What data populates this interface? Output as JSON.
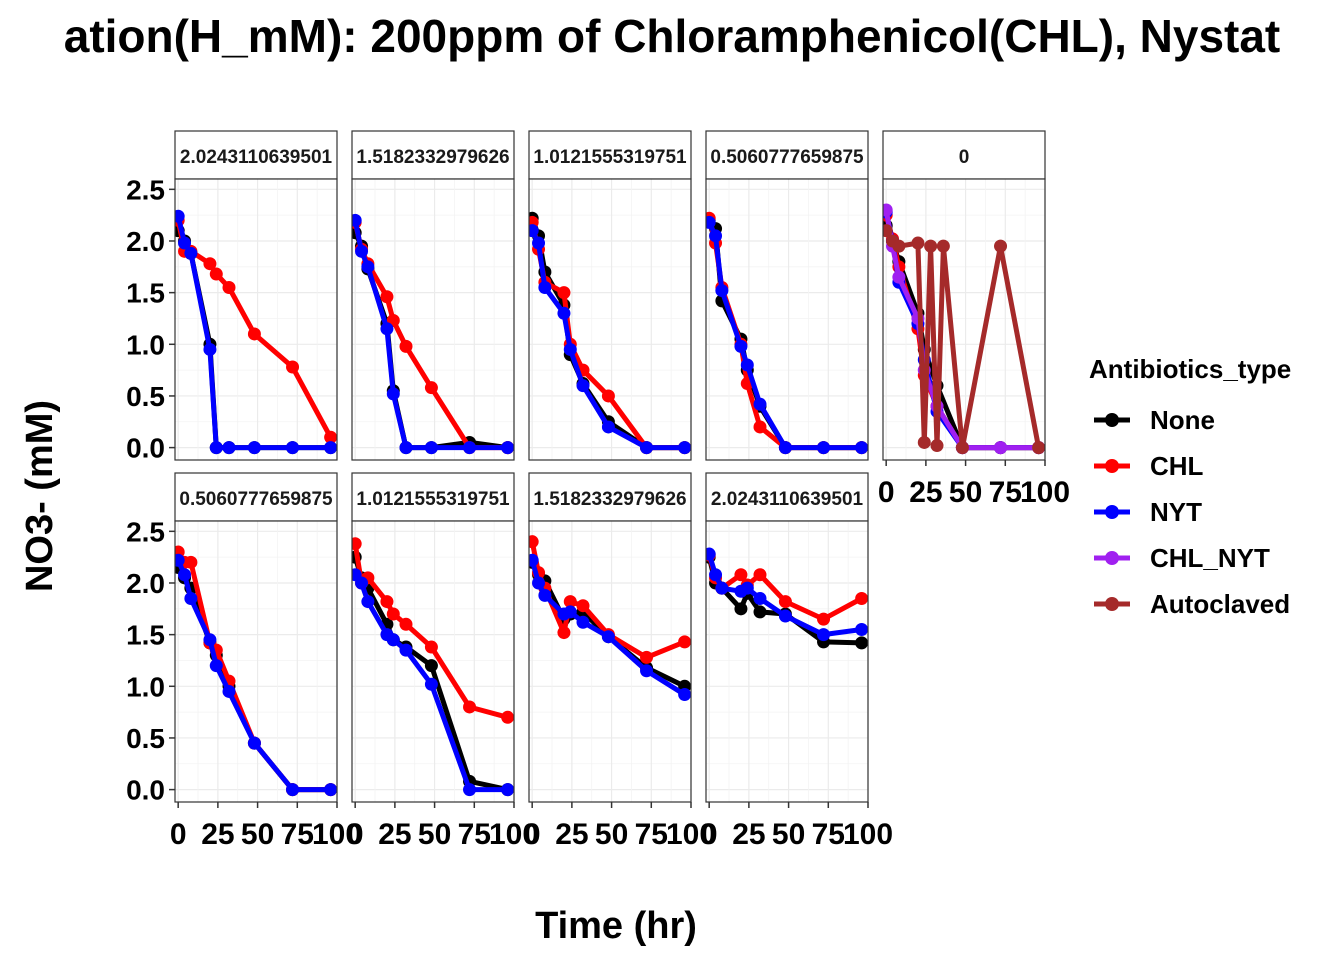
{
  "chart_data": {
    "type": "line",
    "title": "ation(H_mM): 200ppm of Chloramphenicol(CHL), Nystat",
    "xlabel": "Time (hr)",
    "ylabel": "NO3- (mM)",
    "xlim": [
      -2,
      100
    ],
    "ylim": [
      -0.12,
      2.6
    ],
    "x_ticks": [
      0,
      25,
      50,
      75,
      100
    ],
    "x_tick_labels": [
      "0",
      "25",
      "50",
      "75",
      "100"
    ],
    "y_ticks": [
      0,
      0.5,
      1,
      1.5,
      2,
      2.5
    ],
    "y_tick_labels": [
      "0.0",
      "0.5",
      "1.0",
      "1.5",
      "2.0",
      "2.5"
    ],
    "grid": true,
    "legend": {
      "title": "Antibiotics_type",
      "placement": "right",
      "entries": [
        "None",
        "CHL",
        "NYT",
        "CHL_NYT",
        "Autoclaved"
      ]
    },
    "colors": {
      "None": "#000000",
      "CHL": "#ff0000",
      "NYT": "#0000ff",
      "CHL_NYT": "#a020f0",
      "Autoclaved": "#a52a2a"
    },
    "panels": [
      {
        "label": "2.0243110639501",
        "series": [
          {
            "name": "None",
            "x": [
              0,
              4,
              8,
              20,
              24,
              32,
              48,
              72,
              96
            ],
            "y": [
              2.1,
              2.0,
              1.88,
              1.0,
              0.0,
              0.0,
              0.0,
              0.0,
              0.0
            ]
          },
          {
            "name": "CHL",
            "x": [
              0,
              4,
              8,
              20,
              24,
              32,
              48,
              72,
              96
            ],
            "y": [
              2.2,
              1.9,
              1.9,
              1.78,
              1.68,
              1.55,
              1.1,
              0.78,
              0.1
            ]
          },
          {
            "name": "NYT",
            "x": [
              0,
              4,
              8,
              20,
              24,
              32,
              48,
              72,
              96
            ],
            "y": [
              2.24,
              1.98,
              1.88,
              0.95,
              0.0,
              0.0,
              0.0,
              0.0,
              0.0
            ]
          }
        ]
      },
      {
        "label": "1.5182332979626",
        "series": [
          {
            "name": "None",
            "x": [
              0,
              4,
              8,
              20,
              24,
              32,
              48,
              72,
              96
            ],
            "y": [
              2.08,
              1.95,
              1.73,
              1.2,
              0.55,
              0.0,
              0.0,
              0.05,
              0.0
            ]
          },
          {
            "name": "CHL",
            "x": [
              0,
              4,
              8,
              20,
              24,
              32,
              48,
              72,
              96
            ],
            "y": [
              2.18,
              1.92,
              1.78,
              1.46,
              1.23,
              0.98,
              0.58,
              0.0,
              0.0
            ]
          },
          {
            "name": "NYT",
            "x": [
              0,
              4,
              8,
              20,
              24,
              32,
              48,
              72,
              96
            ],
            "y": [
              2.2,
              1.9,
              1.75,
              1.15,
              0.52,
              0.0,
              0.0,
              0.0,
              0.0
            ]
          }
        ]
      },
      {
        "label": "1.0121555319751",
        "series": [
          {
            "name": "None",
            "x": [
              0,
              4,
              8,
              20,
              24,
              32,
              48,
              72,
              96
            ],
            "y": [
              2.22,
              2.05,
              1.7,
              1.38,
              0.9,
              0.62,
              0.25,
              0.0,
              0.0
            ]
          },
          {
            "name": "CHL",
            "x": [
              0,
              4,
              8,
              20,
              24,
              32,
              48,
              72,
              96
            ],
            "y": [
              2.18,
              1.92,
              1.6,
              1.5,
              1.0,
              0.75,
              0.5,
              0.0,
              0.0
            ]
          },
          {
            "name": "NYT",
            "x": [
              0,
              4,
              8,
              20,
              24,
              32,
              48,
              72,
              96
            ],
            "y": [
              2.1,
              1.98,
              1.55,
              1.3,
              0.95,
              0.6,
              0.2,
              0.0,
              0.0
            ]
          }
        ]
      },
      {
        "label": "0.5060777659875",
        "series": [
          {
            "name": "None",
            "x": [
              0,
              4,
              8,
              20,
              24,
              32,
              48,
              72,
              96
            ],
            "y": [
              2.2,
              2.12,
              1.42,
              1.05,
              0.75,
              0.4,
              0.0,
              0.0,
              0.0
            ]
          },
          {
            "name": "CHL",
            "x": [
              0,
              4,
              8,
              20,
              24,
              32,
              48,
              72,
              96
            ],
            "y": [
              2.22,
              1.98,
              1.55,
              1.0,
              0.62,
              0.2,
              0.0,
              0.0,
              0.0
            ]
          },
          {
            "name": "NYT",
            "x": [
              0,
              4,
              8,
              20,
              24,
              32,
              48,
              72,
              96
            ],
            "y": [
              2.18,
              2.05,
              1.52,
              0.98,
              0.8,
              0.42,
              0.0,
              0.0,
              0.0
            ]
          }
        ]
      },
      {
        "label": "0",
        "series": [
          {
            "name": "None",
            "x": [
              0,
              4,
              8,
              20,
              24,
              32,
              48,
              72,
              96
            ],
            "y": [
              2.15,
              2.0,
              1.8,
              1.3,
              0.95,
              0.6,
              0.0,
              0.0,
              0.0
            ]
          },
          {
            "name": "CHL",
            "x": [
              0,
              4,
              8,
              20,
              24,
              32,
              48,
              72,
              96
            ],
            "y": [
              2.25,
              2.02,
              1.75,
              1.15,
              0.7,
              0.4,
              0.0,
              0.0,
              0.0
            ]
          },
          {
            "name": "NYT",
            "x": [
              0,
              4,
              8,
              20,
              24,
              32,
              48,
              72,
              96
            ],
            "y": [
              2.28,
              2.0,
              1.6,
              1.2,
              0.85,
              0.35,
              0.0,
              0.0,
              0.0
            ]
          },
          {
            "name": "CHL_NYT",
            "x": [
              0,
              4,
              8,
              20,
              24,
              32,
              48,
              72,
              96
            ],
            "y": [
              2.3,
              1.95,
              1.65,
              1.25,
              0.75,
              0.4,
              0.0,
              0.0,
              0.0
            ]
          },
          {
            "name": "Autoclaved",
            "x": [
              0,
              4,
              8,
              20,
              24,
              28,
              32,
              36,
              48,
              72,
              96
            ],
            "y": [
              2.1,
              2.0,
              1.95,
              1.98,
              0.05,
              1.95,
              0.02,
              1.95,
              0.0,
              1.95,
              0.0
            ]
          }
        ]
      },
      {
        "label": "0.5060777659875",
        "series": [
          {
            "name": "None",
            "x": [
              0,
              4,
              8,
              20,
              24,
              32,
              48,
              72,
              96
            ],
            "y": [
              2.15,
              2.05,
              1.95,
              1.42,
              1.3,
              1.0,
              0.45,
              0.0,
              0.0
            ]
          },
          {
            "name": "CHL",
            "x": [
              0,
              4,
              8,
              20,
              24,
              32,
              48,
              72,
              96
            ],
            "y": [
              2.3,
              2.2,
              2.2,
              1.42,
              1.35,
              1.05,
              0.45,
              0.0,
              0.0
            ]
          },
          {
            "name": "NYT",
            "x": [
              0,
              4,
              8,
              20,
              24,
              32,
              48,
              72,
              96
            ],
            "y": [
              2.22,
              2.08,
              1.85,
              1.45,
              1.2,
              0.95,
              0.45,
              0.0,
              0.0
            ]
          }
        ]
      },
      {
        "label": "1.0121555319751",
        "series": [
          {
            "name": "None",
            "x": [
              0,
              4,
              8,
              20,
              24,
              32,
              48,
              72,
              96
            ],
            "y": [
              2.25,
              2.05,
              1.95,
              1.6,
              1.45,
              1.38,
              1.2,
              0.08,
              0.0
            ]
          },
          {
            "name": "CHL",
            "x": [
              0,
              4,
              8,
              20,
              24,
              32,
              48,
              72,
              96
            ],
            "y": [
              2.38,
              2.0,
              2.05,
              1.82,
              1.7,
              1.6,
              1.38,
              0.8,
              0.7
            ]
          },
          {
            "name": "NYT",
            "x": [
              0,
              4,
              8,
              20,
              24,
              32,
              48,
              72,
              96
            ],
            "y": [
              2.08,
              2.0,
              1.82,
              1.5,
              1.45,
              1.35,
              1.02,
              0.0,
              0.0
            ]
          }
        ]
      },
      {
        "label": "1.5182332979626",
        "series": [
          {
            "name": "None",
            "x": [
              0,
              4,
              8,
              20,
              24,
              32,
              48,
              72,
              96
            ],
            "y": [
              2.2,
              2.08,
              2.02,
              1.65,
              1.7,
              1.72,
              1.48,
              1.18,
              1.0
            ]
          },
          {
            "name": "CHL",
            "x": [
              0,
              4,
              8,
              20,
              24,
              32,
              48,
              72,
              96
            ],
            "y": [
              2.4,
              2.1,
              1.95,
              1.52,
              1.82,
              1.78,
              1.5,
              1.28,
              1.43
            ]
          },
          {
            "name": "NYT",
            "x": [
              0,
              4,
              8,
              20,
              24,
              32,
              48,
              72,
              96
            ],
            "y": [
              2.22,
              2.0,
              1.88,
              1.7,
              1.72,
              1.62,
              1.48,
              1.15,
              0.92
            ]
          }
        ]
      },
      {
        "label": "2.0243110639501",
        "series": [
          {
            "name": "None",
            "x": [
              0,
              4,
              8,
              20,
              24,
              32,
              48,
              72,
              96
            ],
            "y": [
              2.25,
              2.0,
              1.95,
              1.75,
              1.9,
              1.72,
              1.7,
              1.43,
              1.42
            ]
          },
          {
            "name": "CHL",
            "x": [
              0,
              4,
              8,
              20,
              24,
              32,
              48,
              72,
              96
            ],
            "y": [
              2.27,
              2.05,
              1.95,
              2.08,
              1.98,
              2.08,
              1.82,
              1.65,
              1.85
            ]
          },
          {
            "name": "NYT",
            "x": [
              0,
              4,
              8,
              20,
              24,
              32,
              48,
              72,
              96
            ],
            "y": [
              2.28,
              2.08,
              1.95,
              1.92,
              1.95,
              1.85,
              1.68,
              1.5,
              1.55
            ]
          }
        ]
      }
    ]
  }
}
